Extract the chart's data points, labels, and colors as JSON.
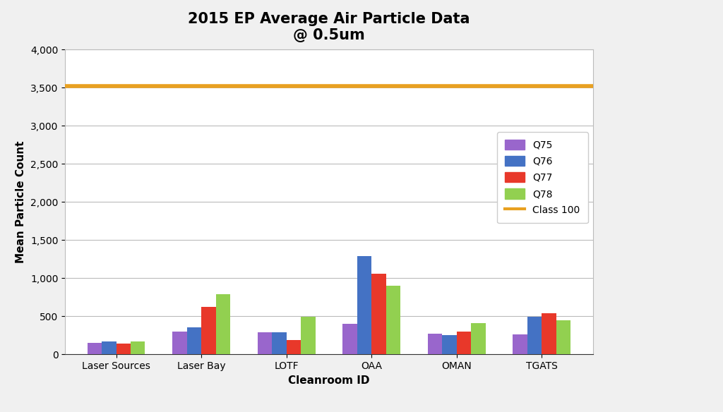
{
  "title": "2015 EP Average Air Particle Data\n@ 0.5um",
  "xlabel": "Cleanroom ID",
  "ylabel": "Mean Particle Count",
  "categories": [
    "Laser Sources",
    "Laser Bay",
    "LOTF",
    "OAA",
    "OMAN",
    "TGATS"
  ],
  "series": {
    "Q75": [
      150,
      300,
      290,
      400,
      275,
      265
    ],
    "Q76": [
      165,
      355,
      290,
      1290,
      255,
      490
    ],
    "Q77": [
      140,
      625,
      185,
      1060,
      295,
      540
    ],
    "Q78": [
      165,
      785,
      490,
      900,
      405,
      450
    ]
  },
  "class100_value": 3520,
  "colors": {
    "Q75": "#9966CC",
    "Q76": "#4472C4",
    "Q77": "#E8382A",
    "Q78": "#92D050",
    "Class 100": "#E8A020"
  },
  "ylim": [
    0,
    4000
  ],
  "yticks": [
    0,
    500,
    1000,
    1500,
    2000,
    2500,
    3000,
    3500,
    4000
  ],
  "ytick_labels": [
    "0",
    "500",
    "1,000",
    "1,500",
    "2,000",
    "2,500",
    "3,000",
    "3,500",
    "4,000"
  ],
  "legend_labels": [
    "Q75",
    "Q76",
    "Q77",
    "Q78",
    "Class 100"
  ],
  "background_color": "#FFFFFF",
  "outer_bg_color": "#F0F0F0",
  "grid_color": "#BBBBBB",
  "bar_width": 0.17,
  "title_fontsize": 15,
  "axis_label_fontsize": 11,
  "tick_fontsize": 10,
  "legend_fontsize": 10
}
